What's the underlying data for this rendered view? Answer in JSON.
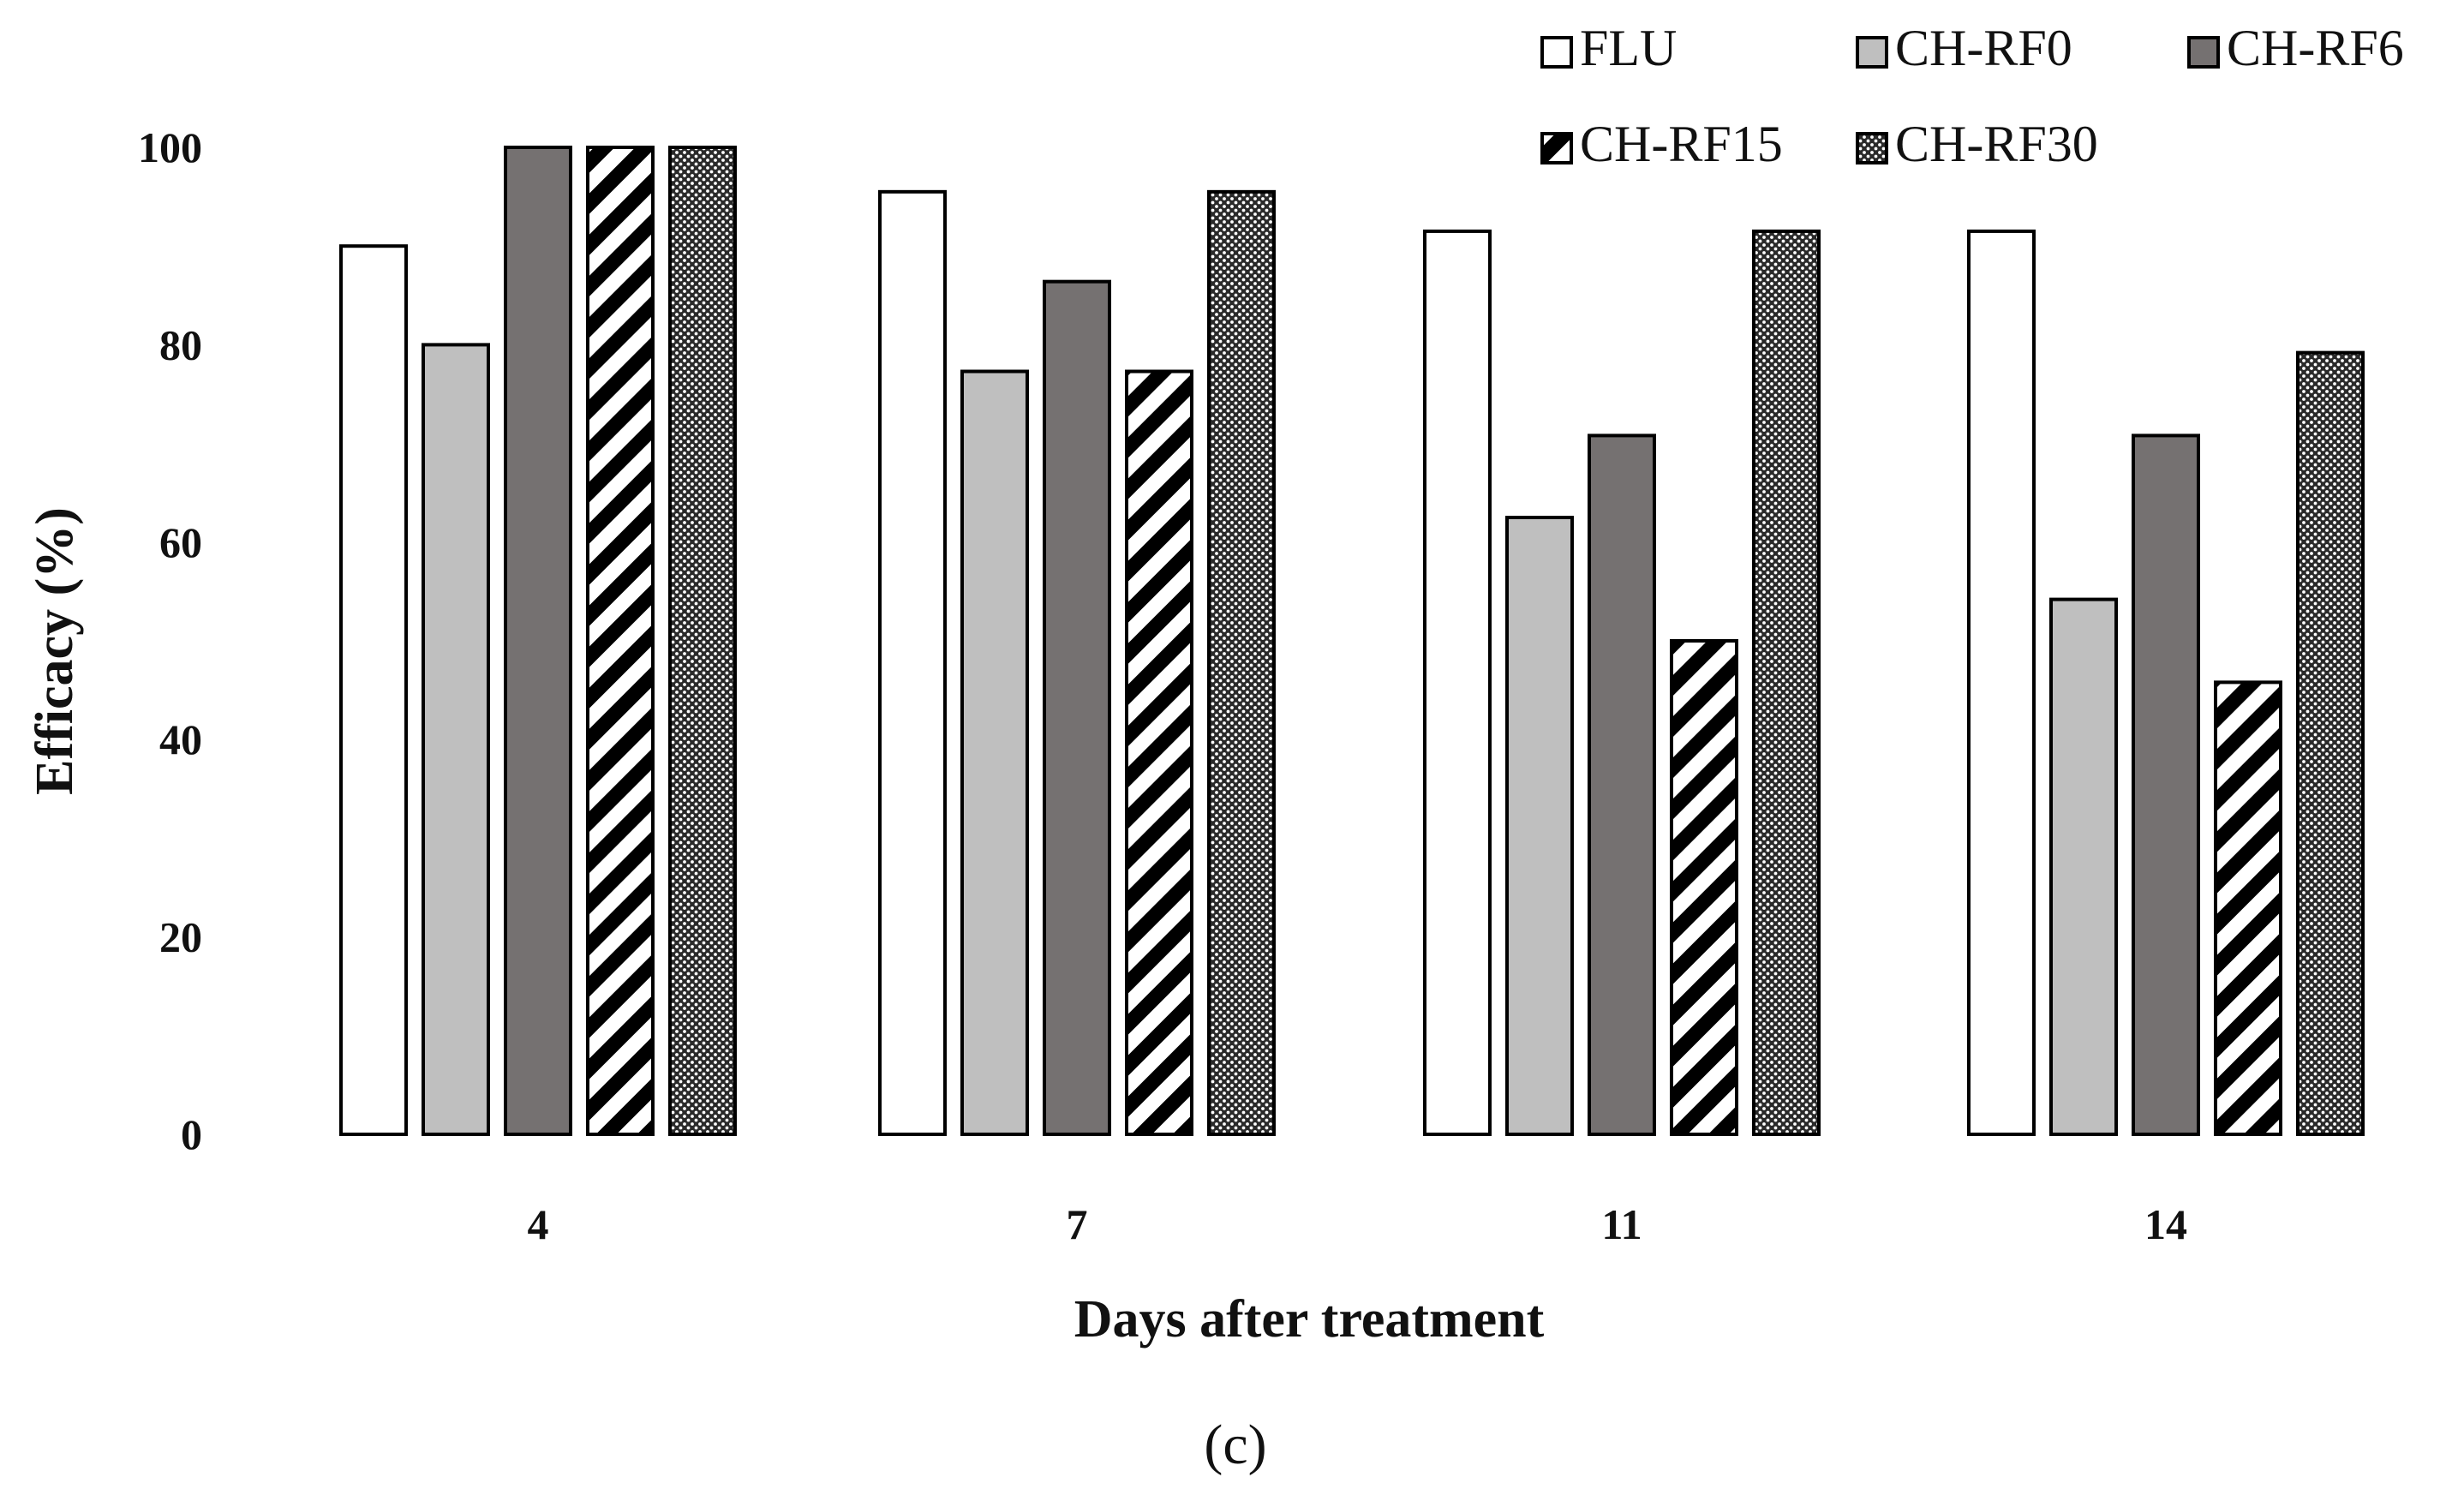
{
  "chart_data": {
    "type": "bar",
    "title": "",
    "xlabel": "Days after treatment",
    "ylabel": "Efficacy (%)",
    "panel_label": "(c)",
    "categories": [
      "4",
      "7",
      "11",
      "14"
    ],
    "ylim": [
      0,
      100
    ],
    "yticks": [
      "0",
      "20",
      "40",
      "60",
      "80",
      "100"
    ],
    "grid": false,
    "legend_position": "top-right",
    "series": [
      {
        "name": "FLU",
        "pattern": "white",
        "values": [
          90,
          95.5,
          91.5,
          91.5
        ]
      },
      {
        "name": "CH-RF0",
        "pattern": "light-gray",
        "values": [
          80,
          77.3,
          62.5,
          54.2
        ]
      },
      {
        "name": "CH-RF6",
        "pattern": "dark-gray",
        "values": [
          100,
          86.4,
          70.8,
          70.8
        ]
      },
      {
        "name": "CH-RF15",
        "pattern": "diagonal-stripes",
        "values": [
          100,
          77.3,
          50,
          45.8
        ]
      },
      {
        "name": "CH-RF30",
        "pattern": "dotted",
        "values": [
          100,
          95.5,
          91.5,
          79.2
        ]
      }
    ],
    "colors": {
      "white": "#ffffff",
      "light_gray": "#bfbfbf",
      "dark_gray": "#757171",
      "stroke": "#000000"
    }
  }
}
